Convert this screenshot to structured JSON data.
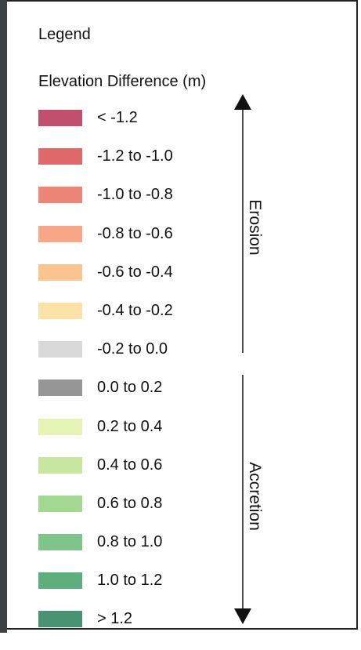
{
  "legend": {
    "title": "Legend",
    "group_title": "Elevation Difference (m)",
    "items": [
      {
        "label": "< -1.2",
        "color": "#c0506e"
      },
      {
        "label": "-1.2 to -1.0",
        "color": "#e0696b"
      },
      {
        "label": "-1.0 to -0.8",
        "color": "#ee8677"
      },
      {
        "label": "-0.8 to -0.6",
        "color": "#f8a688"
      },
      {
        "label": "-0.6 to -0.4",
        "color": "#fcc48e"
      },
      {
        "label": "-0.4 to -0.2",
        "color": "#fde2a7"
      },
      {
        "label": "-0.2 to 0.0",
        "color": "#d9d9d9"
      },
      {
        "label": "0.0 to 0.2",
        "color": "#969696"
      },
      {
        "label": "0.2 to 0.4",
        "color": "#e5f4b5"
      },
      {
        "label": "0.4 to 0.6",
        "color": "#c9e7a0"
      },
      {
        "label": "0.6 to 0.8",
        "color": "#a3d891"
      },
      {
        "label": "0.8 to 1.0",
        "color": "#7ec48b"
      },
      {
        "label": "1.0 to 1.2",
        "color": "#5cae7c"
      },
      {
        "label": "> 1.2",
        "color": "#489472"
      }
    ],
    "erosion_label": "Erosion",
    "accretion_label": "Accretion"
  }
}
